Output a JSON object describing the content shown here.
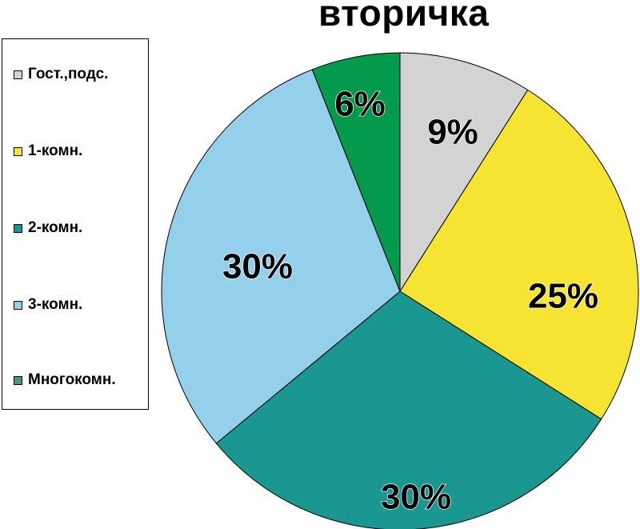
{
  "chart_data": {
    "type": "pie",
    "title": "вторичка",
    "categories": [
      "Гост.,подс.",
      "1-комн.",
      "2-комн.",
      "3-комн.",
      "Многокомн."
    ],
    "values": [
      9,
      25,
      30,
      30,
      6
    ],
    "data_labels": [
      "9%",
      "25%",
      "30%",
      "30%",
      "6%"
    ],
    "colors": [
      "#d3d3d3",
      "#f7e432",
      "#199790",
      "#94cfec",
      "#039a4d"
    ],
    "legend_colors": [
      "#d3d3d3",
      "#f7e432",
      "#199790",
      "#94cfec",
      "#4a9a78"
    ],
    "legend_position": "left",
    "start_angle": "12 o'clock",
    "direction": "clockwise"
  }
}
